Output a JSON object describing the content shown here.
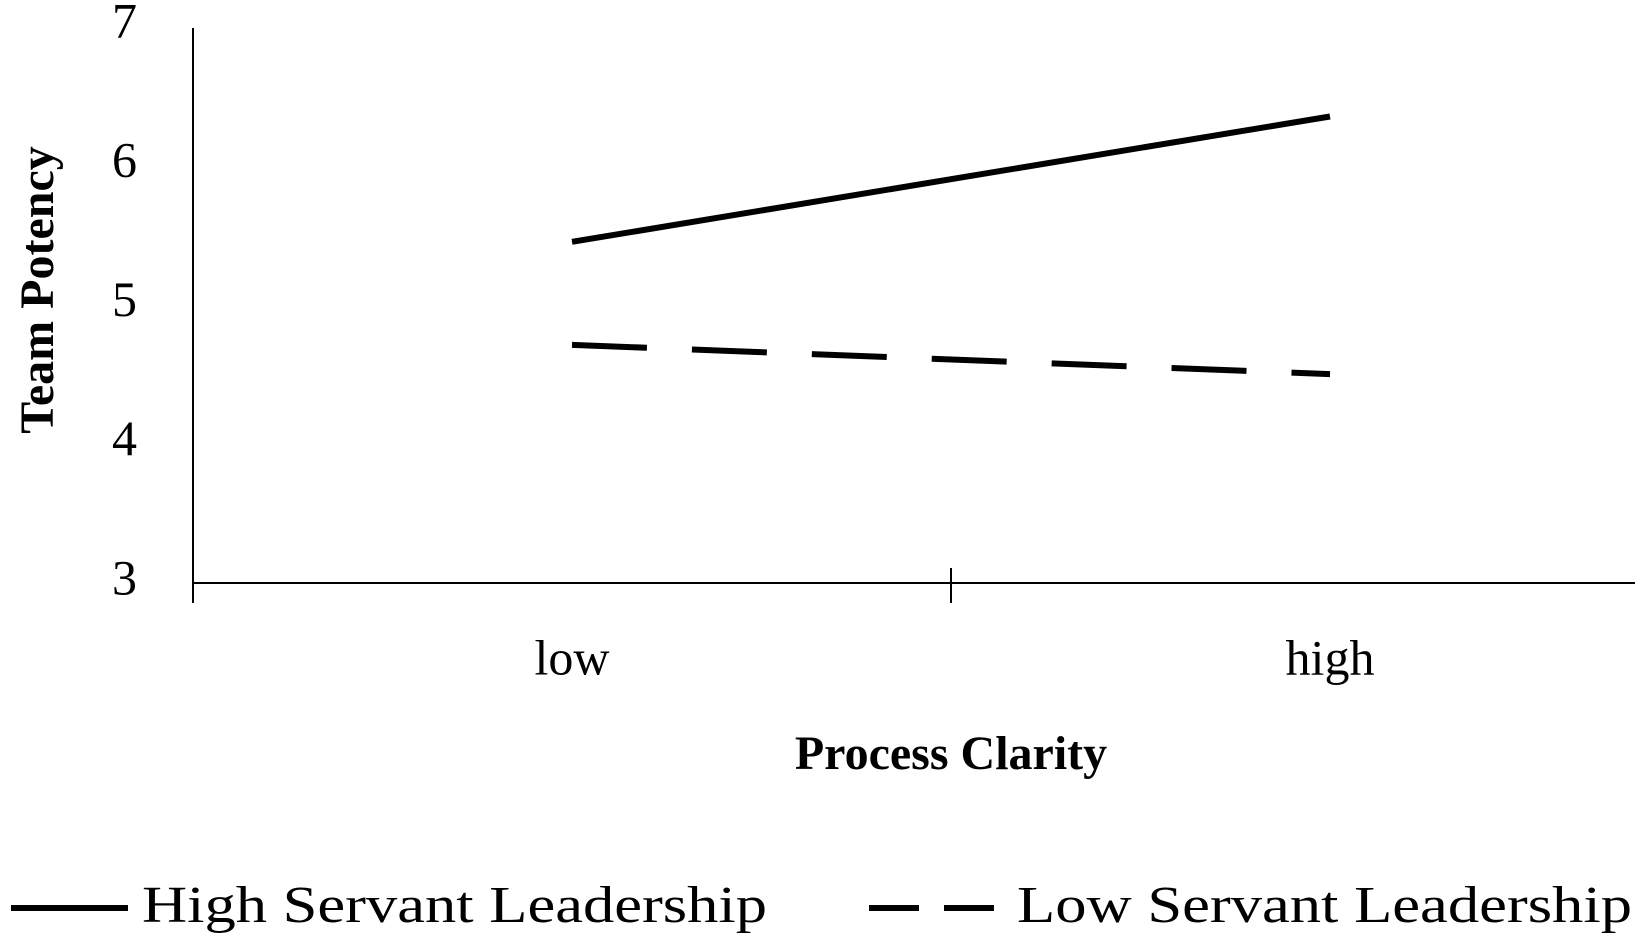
{
  "chart_data": {
    "type": "line",
    "x_label": "Process Clarity",
    "y_label": "Team Potency",
    "categories": [
      "low",
      "high"
    ],
    "series": [
      {
        "name": "High Servant Leadership",
        "color": "#000000",
        "dash": "solid",
        "values": [
          5.45,
          6.35
        ]
      },
      {
        "name": "Low Servant Leadership",
        "color": "#000000",
        "dash": "dashed",
        "values": [
          4.71,
          4.5
        ]
      }
    ],
    "ylim": [
      3,
      7
    ],
    "yticks": [
      3,
      4,
      5,
      6,
      7
    ],
    "grid": false,
    "legend": "bottom"
  }
}
